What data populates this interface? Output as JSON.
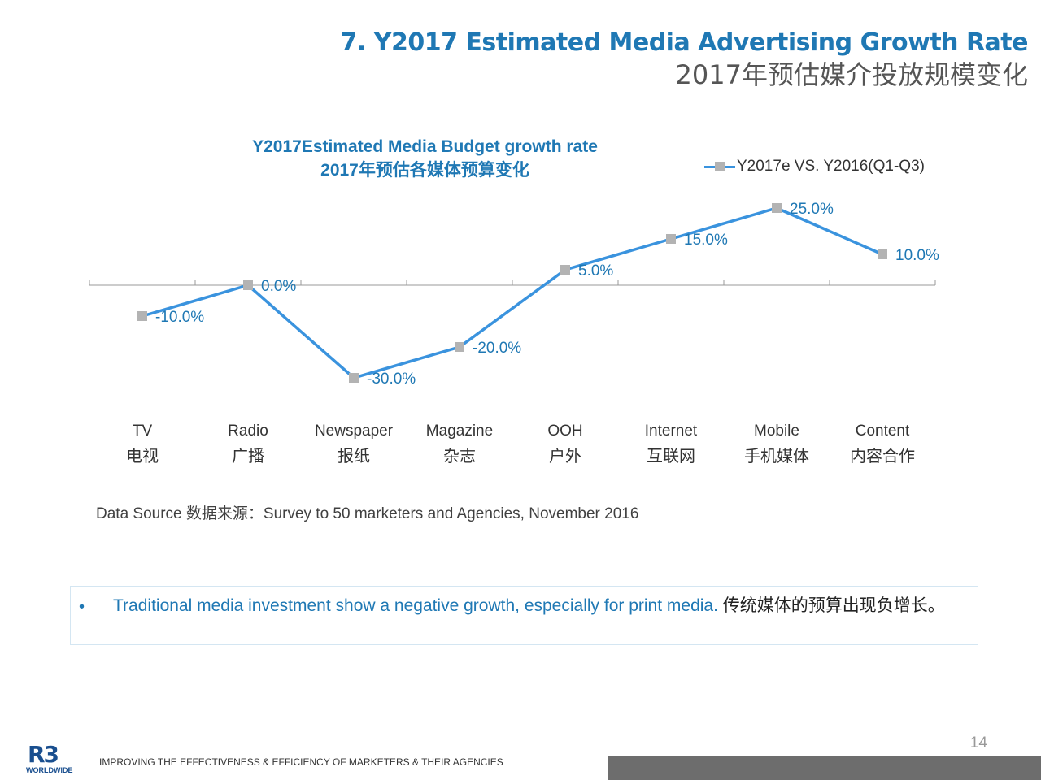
{
  "slide": {
    "title_en": "7. Y2017 Estimated Media Advertising  Growth Rate",
    "title_cn": "2017年预估媒介投放规模变化"
  },
  "source": "Data Source 数据来源：Survey to 50 marketers and Agencies, November 2016",
  "note": {
    "bullet": "•",
    "text_en": "Traditional media investment show a negative growth, especially for print media.",
    "text_cn": " 传统媒体的预算出现负增长。"
  },
  "footer": {
    "tagline": "IMPROVING THE EFFECTIVENESS & EFFICIENCY OF MARKETERS & THEIR AGENCIES",
    "page_number": "14",
    "logo_text": "R3",
    "logo_sub": "WORLDWIDE"
  },
  "colors": {
    "line": "#3a93de",
    "marker": "#b3b3b3",
    "label": "#1f78b4",
    "axis": "#999999"
  },
  "chart_data": {
    "type": "line",
    "title": "Y2017Estimated Media Budget growth rate",
    "subtitle": "2017年预估各媒体预算变化",
    "categories": [
      {
        "en": "TV",
        "cn": "电视"
      },
      {
        "en": "Radio",
        "cn": "广播"
      },
      {
        "en": "Newspaper",
        "cn": "报纸"
      },
      {
        "en": "Magazine",
        "cn": "杂志"
      },
      {
        "en": "OOH",
        "cn": "户外"
      },
      {
        "en": "Internet",
        "cn": "互联网"
      },
      {
        "en": "Mobile",
        "cn": "手机媒体"
      },
      {
        "en": "Content",
        "cn": "内容合作"
      }
    ],
    "series": [
      {
        "name": "Y2017e VS. Y2016(Q1-Q3)",
        "values": [
          -10.0,
          0.0,
          -30.0,
          -20.0,
          5.0,
          15.0,
          25.0,
          10.0
        ],
        "labels": [
          "-10.0%",
          "0.0%",
          "-30.0%",
          "-20.0%",
          "5.0%",
          "15.0%",
          "25.0%",
          "10.0%"
        ]
      }
    ],
    "ylim": [
      -30,
      25
    ],
    "legend": "top-right",
    "grid": false,
    "xlabel": "",
    "ylabel": ""
  }
}
